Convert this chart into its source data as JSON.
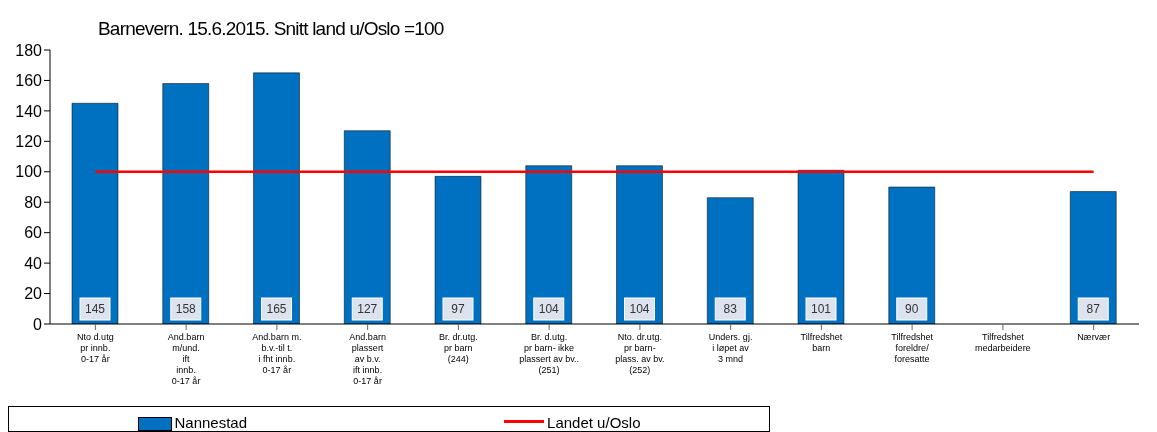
{
  "chart_data": {
    "type": "bar",
    "title": "Barnevern. 15.6.2015. Snitt land u/Oslo =100",
    "categories": [
      "Nto d.utg\npr innb.\n0-17 år",
      "And.barn\nm/und.\nift\ninnb.\n0-17 år",
      "And.barn m.\nb.v.-til t.\ni fht innb.\n0-17 år",
      "And.barn\nplassert\nav b.v.\nift innb.\n0-17 år",
      "Br. dr.utg.\npr barn\n(244)",
      "Br. d.utg.\npr barn- ikke\nplassert av bv..\n(251)",
      "Nto. dr.utg.\npr barn-\nplass. av bv.\n(252)",
      "Unders. gj.\ni løpet av\n3 mnd",
      "Tilfredshet\nbarn",
      "Tilfredshet\nforeldre/\nforesatte",
      "Tilfredshet\nmedarbeidere",
      "Nærvær"
    ],
    "series": [
      {
        "name": "Nannestad",
        "color": "#0070c0",
        "values": [
          145,
          158,
          165,
          127,
          97,
          104,
          104,
          83,
          101,
          90,
          null,
          87
        ],
        "value_labels": [
          "145",
          "158",
          "165",
          "127",
          "97",
          "104",
          "104",
          "83",
          "101",
          "90",
          null,
          "87"
        ]
      },
      {
        "name": "Landet u/Oslo",
        "type": "line",
        "color": "#ff0000",
        "values": [
          100,
          100,
          100,
          100,
          100,
          100,
          100,
          100,
          100,
          100,
          100,
          100
        ]
      }
    ],
    "ylim": [
      0,
      180
    ],
    "yticks": [
      0,
      20,
      40,
      60,
      80,
      100,
      120,
      140,
      160,
      180
    ],
    "legend": "bottom",
    "marker": "none"
  }
}
